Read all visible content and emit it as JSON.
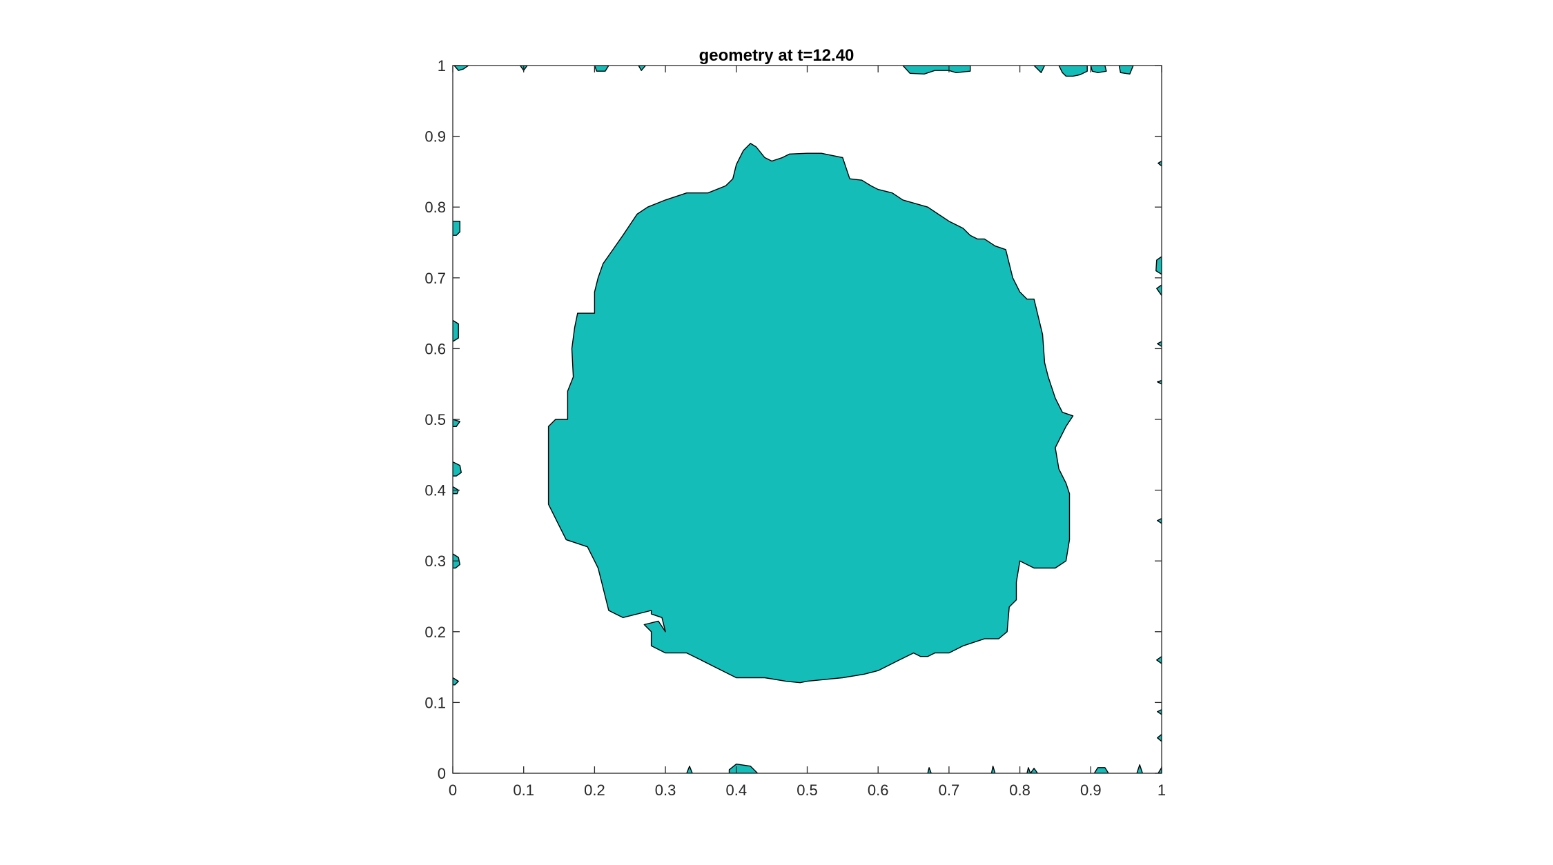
{
  "chart_data": {
    "type": "area",
    "title": "geometry at t=12.40",
    "xlabel": "",
    "ylabel": "",
    "xlim": [
      0,
      1
    ],
    "ylim": [
      0,
      1
    ],
    "grid": false,
    "xticks": [
      0,
      0.1,
      0.2,
      0.3,
      0.4,
      0.5,
      0.6,
      0.7,
      0.8,
      0.9,
      1
    ],
    "yticks": [
      0,
      0.1,
      0.2,
      0.3,
      0.4,
      0.5,
      0.6,
      0.7,
      0.8,
      0.9,
      1
    ],
    "xtick_labels": [
      "0",
      "0.1",
      "0.2",
      "0.3",
      "0.4",
      "0.5",
      "0.6",
      "0.7",
      "0.8",
      "0.9",
      "1"
    ],
    "ytick_labels": [
      "0",
      "0.1",
      "0.2",
      "0.3",
      "0.4",
      "0.5",
      "0.6",
      "0.7",
      "0.8",
      "0.9",
      "1"
    ],
    "colors": {
      "fill": "#14bdb8",
      "edge": "#000000",
      "axes": "#262626",
      "background": "#ffffff"
    },
    "regions": [
      {
        "name": "main",
        "points": [
          [
            0.135,
            0.38
          ],
          [
            0.135,
            0.49
          ],
          [
            0.145,
            0.5
          ],
          [
            0.162,
            0.5
          ],
          [
            0.162,
            0.54
          ],
          [
            0.17,
            0.56
          ],
          [
            0.168,
            0.6
          ],
          [
            0.172,
            0.63
          ],
          [
            0.176,
            0.65
          ],
          [
            0.2,
            0.65
          ],
          [
            0.2,
            0.68
          ],
          [
            0.205,
            0.7
          ],
          [
            0.212,
            0.72
          ],
          [
            0.24,
            0.76
          ],
          [
            0.26,
            0.79
          ],
          [
            0.275,
            0.8
          ],
          [
            0.3,
            0.81
          ],
          [
            0.33,
            0.82
          ],
          [
            0.36,
            0.82
          ],
          [
            0.385,
            0.83
          ],
          [
            0.395,
            0.84
          ],
          [
            0.4,
            0.86
          ],
          [
            0.41,
            0.88
          ],
          [
            0.42,
            0.89
          ],
          [
            0.428,
            0.885
          ],
          [
            0.44,
            0.87
          ],
          [
            0.45,
            0.865
          ],
          [
            0.465,
            0.87
          ],
          [
            0.475,
            0.875
          ],
          [
            0.5,
            0.876
          ],
          [
            0.52,
            0.876
          ],
          [
            0.53,
            0.874
          ],
          [
            0.55,
            0.87
          ],
          [
            0.56,
            0.84
          ],
          [
            0.577,
            0.838
          ],
          [
            0.59,
            0.83
          ],
          [
            0.6,
            0.825
          ],
          [
            0.62,
            0.82
          ],
          [
            0.635,
            0.81
          ],
          [
            0.67,
            0.8
          ],
          [
            0.685,
            0.79
          ],
          [
            0.7,
            0.78
          ],
          [
            0.71,
            0.775
          ],
          [
            0.72,
            0.77
          ],
          [
            0.73,
            0.76
          ],
          [
            0.74,
            0.755
          ],
          [
            0.75,
            0.755
          ],
          [
            0.765,
            0.745
          ],
          [
            0.78,
            0.74
          ],
          [
            0.79,
            0.7
          ],
          [
            0.8,
            0.68
          ],
          [
            0.81,
            0.67
          ],
          [
            0.82,
            0.67
          ],
          [
            0.832,
            0.62
          ],
          [
            0.835,
            0.58
          ],
          [
            0.84,
            0.56
          ],
          [
            0.85,
            0.53
          ],
          [
            0.86,
            0.51
          ],
          [
            0.875,
            0.505
          ],
          [
            0.865,
            0.49
          ],
          [
            0.85,
            0.46
          ],
          [
            0.855,
            0.43
          ],
          [
            0.86,
            0.42
          ],
          [
            0.865,
            0.41
          ],
          [
            0.87,
            0.395
          ],
          [
            0.87,
            0.33
          ],
          [
            0.865,
            0.3
          ],
          [
            0.85,
            0.29
          ],
          [
            0.82,
            0.29
          ],
          [
            0.8,
            0.3
          ],
          [
            0.795,
            0.27
          ],
          [
            0.795,
            0.245
          ],
          [
            0.785,
            0.235
          ],
          [
            0.782,
            0.2
          ],
          [
            0.77,
            0.19
          ],
          [
            0.75,
            0.19
          ],
          [
            0.72,
            0.18
          ],
          [
            0.7,
            0.17
          ],
          [
            0.68,
            0.17
          ],
          [
            0.67,
            0.165
          ],
          [
            0.66,
            0.165
          ],
          [
            0.65,
            0.17
          ],
          [
            0.63,
            0.16
          ],
          [
            0.6,
            0.145
          ],
          [
            0.58,
            0.14
          ],
          [
            0.55,
            0.135
          ],
          [
            0.52,
            0.132
          ],
          [
            0.5,
            0.13
          ],
          [
            0.49,
            0.128
          ],
          [
            0.47,
            0.13
          ],
          [
            0.44,
            0.135
          ],
          [
            0.4,
            0.135
          ],
          [
            0.39,
            0.14
          ],
          [
            0.37,
            0.15
          ],
          [
            0.35,
            0.16
          ],
          [
            0.33,
            0.17
          ],
          [
            0.3,
            0.17
          ],
          [
            0.28,
            0.18
          ],
          [
            0.28,
            0.2
          ],
          [
            0.27,
            0.21
          ],
          [
            0.29,
            0.215
          ],
          [
            0.3,
            0.2
          ],
          [
            0.295,
            0.22
          ],
          [
            0.28,
            0.225
          ],
          [
            0.28,
            0.23
          ],
          [
            0.24,
            0.22
          ],
          [
            0.22,
            0.23
          ],
          [
            0.215,
            0.25
          ],
          [
            0.21,
            0.27
          ],
          [
            0.205,
            0.29
          ],
          [
            0.2,
            0.3
          ],
          [
            0.19,
            0.32
          ],
          [
            0.16,
            0.33
          ],
          [
            0.15,
            0.35
          ],
          [
            0.14,
            0.37
          ]
        ]
      },
      {
        "name": "blob-top-1",
        "points": [
          [
            0.002,
            1
          ],
          [
            0.022,
            1
          ],
          [
            0.015,
            0.995
          ],
          [
            0.008,
            0.993
          ]
        ]
      },
      {
        "name": "blob-top-2",
        "points": [
          [
            0.095,
            1
          ],
          [
            0.105,
            1
          ],
          [
            0.1,
            0.993
          ]
        ]
      },
      {
        "name": "blob-top-3",
        "points": [
          [
            0.2,
            1
          ],
          [
            0.22,
            1
          ],
          [
            0.215,
            0.992
          ],
          [
            0.203,
            0.992
          ]
        ]
      },
      {
        "name": "blob-top-4",
        "points": [
          [
            0.262,
            1
          ],
          [
            0.272,
            1
          ],
          [
            0.266,
            0.993
          ]
        ]
      },
      {
        "name": "blob-top-5",
        "points": [
          [
            0.635,
            1
          ],
          [
            0.73,
            1
          ],
          [
            0.73,
            0.992
          ],
          [
            0.71,
            0.99
          ],
          [
            0.7,
            0.993
          ],
          [
            0.68,
            0.993
          ],
          [
            0.665,
            0.988
          ],
          [
            0.645,
            0.989
          ]
        ]
      },
      {
        "name": "blob-top-6",
        "points": [
          [
            0.82,
            1
          ],
          [
            0.835,
            1
          ],
          [
            0.83,
            0.99
          ]
        ]
      },
      {
        "name": "blob-top-7",
        "points": [
          [
            0.855,
            1
          ],
          [
            0.895,
            1
          ],
          [
            0.895,
            0.992
          ],
          [
            0.885,
            0.987
          ],
          [
            0.875,
            0.985
          ],
          [
            0.865,
            0.985
          ],
          [
            0.86,
            0.99
          ]
        ]
      },
      {
        "name": "blob-top-8",
        "points": [
          [
            0.9,
            1
          ],
          [
            0.92,
            1
          ],
          [
            0.922,
            0.992
          ],
          [
            0.91,
            0.99
          ],
          [
            0.902,
            0.992
          ]
        ]
      },
      {
        "name": "blob-top-9",
        "points": [
          [
            0.94,
            1
          ],
          [
            0.96,
            1
          ],
          [
            0.955,
            0.988
          ],
          [
            0.942,
            0.99
          ]
        ]
      },
      {
        "name": "blob-left-1",
        "points": [
          [
            0,
            0.78
          ],
          [
            0.01,
            0.78
          ],
          [
            0.01,
            0.765
          ],
          [
            0.005,
            0.76
          ],
          [
            0,
            0.76
          ]
        ]
      },
      {
        "name": "blob-left-2",
        "points": [
          [
            0,
            0.64
          ],
          [
            0.008,
            0.635
          ],
          [
            0.008,
            0.615
          ],
          [
            0,
            0.61
          ]
        ]
      },
      {
        "name": "blob-left-3",
        "points": [
          [
            0,
            0.5
          ],
          [
            0.01,
            0.497
          ],
          [
            0.005,
            0.49
          ],
          [
            0,
            0.49
          ]
        ]
      },
      {
        "name": "blob-left-4",
        "points": [
          [
            0,
            0.44
          ],
          [
            0.01,
            0.435
          ],
          [
            0.012,
            0.425
          ],
          [
            0.005,
            0.42
          ],
          [
            0,
            0.42
          ]
        ]
      },
      {
        "name": "blob-left-5",
        "points": [
          [
            0,
            0.405
          ],
          [
            0.008,
            0.4
          ],
          [
            0.006,
            0.395
          ],
          [
            0,
            0.395
          ]
        ]
      },
      {
        "name": "blob-left-6",
        "points": [
          [
            0,
            0.31
          ],
          [
            0.008,
            0.305
          ],
          [
            0.01,
            0.295
          ],
          [
            0.004,
            0.29
          ],
          [
            0,
            0.29
          ]
        ]
      },
      {
        "name": "blob-left-7",
        "points": [
          [
            0,
            0.135
          ],
          [
            0.008,
            0.13
          ],
          [
            0.003,
            0.125
          ],
          [
            0,
            0.125
          ]
        ]
      },
      {
        "name": "blob-right-1",
        "points": [
          [
            1,
            0.865
          ],
          [
            0.995,
            0.862
          ],
          [
            1,
            0.858
          ]
        ]
      },
      {
        "name": "blob-right-2",
        "points": [
          [
            1,
            0.73
          ],
          [
            0.993,
            0.725
          ],
          [
            0.992,
            0.71
          ],
          [
            1,
            0.705
          ]
        ]
      },
      {
        "name": "blob-right-3",
        "points": [
          [
            1,
            0.69
          ],
          [
            0.993,
            0.685
          ],
          [
            1,
            0.675
          ]
        ]
      },
      {
        "name": "blob-right-4",
        "points": [
          [
            1,
            0.61
          ],
          [
            0.994,
            0.607
          ],
          [
            1,
            0.603
          ]
        ]
      },
      {
        "name": "blob-right-5",
        "points": [
          [
            1,
            0.555
          ],
          [
            0.994,
            0.553
          ],
          [
            1,
            0.55
          ]
        ]
      },
      {
        "name": "blob-right-6",
        "points": [
          [
            1,
            0.36
          ],
          [
            0.994,
            0.357
          ],
          [
            1,
            0.353
          ]
        ]
      },
      {
        "name": "blob-right-7",
        "points": [
          [
            1,
            0.165
          ],
          [
            0.993,
            0.16
          ],
          [
            1,
            0.155
          ]
        ]
      },
      {
        "name": "blob-right-8",
        "points": [
          [
            1,
            0.09
          ],
          [
            0.994,
            0.087
          ],
          [
            1,
            0.083
          ]
        ]
      },
      {
        "name": "blob-right-9",
        "points": [
          [
            1,
            0.055
          ],
          [
            0.994,
            0.05
          ],
          [
            1,
            0.045
          ]
        ]
      },
      {
        "name": "blob-bottom-1",
        "points": [
          [
            0.33,
            0
          ],
          [
            0.338,
            0
          ],
          [
            0.334,
            0.01
          ]
        ]
      },
      {
        "name": "blob-bottom-2",
        "points": [
          [
            0.39,
            0
          ],
          [
            0.43,
            0
          ],
          [
            0.42,
            0.01
          ],
          [
            0.4,
            0.013
          ],
          [
            0.39,
            0.005
          ]
        ]
      },
      {
        "name": "blob-bottom-3",
        "points": [
          [
            0.67,
            0
          ],
          [
            0.675,
            0
          ],
          [
            0.672,
            0.008
          ]
        ]
      },
      {
        "name": "blob-bottom-4",
        "points": [
          [
            0.76,
            0
          ],
          [
            0.765,
            0
          ],
          [
            0.762,
            0.01
          ]
        ]
      },
      {
        "name": "blob-bottom-5",
        "points": [
          [
            0.81,
            0
          ],
          [
            0.815,
            0
          ],
          [
            0.812,
            0.008
          ]
        ]
      },
      {
        "name": "blob-bottom-6",
        "points": [
          [
            0.815,
            0
          ],
          [
            0.825,
            0
          ],
          [
            0.82,
            0.007
          ]
        ]
      },
      {
        "name": "blob-bottom-7",
        "points": [
          [
            0.905,
            0
          ],
          [
            0.925,
            0
          ],
          [
            0.92,
            0.008
          ],
          [
            0.91,
            0.008
          ]
        ]
      },
      {
        "name": "blob-bottom-8",
        "points": [
          [
            0.965,
            0
          ],
          [
            0.973,
            0
          ],
          [
            0.969,
            0.012
          ]
        ]
      },
      {
        "name": "blob-bottom-9",
        "points": [
          [
            0.995,
            0
          ],
          [
            1,
            0
          ],
          [
            1,
            0.008
          ]
        ]
      }
    ]
  }
}
